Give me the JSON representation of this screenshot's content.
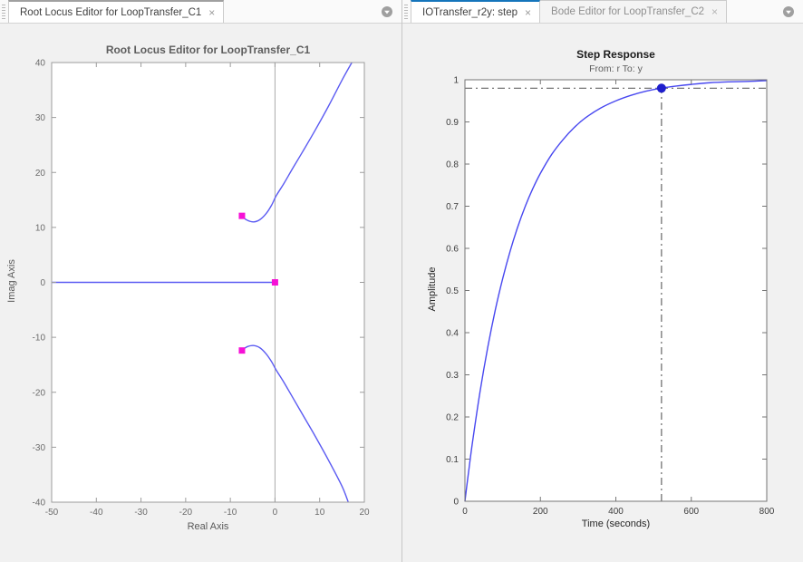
{
  "panels": [
    {
      "id": "root-locus-editor",
      "tabs": [
        {
          "label": "Root Locus Editor for LoopTransfer_C1",
          "close_icon": "×",
          "state": "selected-unfocused"
        }
      ],
      "overflow_icon": "circle-arrow-down"
    },
    {
      "id": "analysis-views",
      "tabs": [
        {
          "label": "IOTransfer_r2y: step",
          "close_icon": "×",
          "state": "selected-focused"
        },
        {
          "label": "Bode Editor for LoopTransfer_C2",
          "close_icon": "×",
          "state": "inactive"
        }
      ],
      "overflow_icon": "circle-arrow-down"
    }
  ],
  "colors": {
    "page_bg": "#f0f0f0",
    "tab_active_accent": "#1575bb",
    "tab_selected_accent": "#a0a0a0",
    "divider": "#c6c6c6",
    "root_locus_line": "#5b5bf2",
    "closed_loop_pole": "#f611d6",
    "step_line": "#4848f0",
    "settling_marker": "#1e1ecc",
    "reference_line": "#666666"
  },
  "chart_data": [
    {
      "type": "line",
      "title": "Root Locus Editor for LoopTransfer_C1",
      "xlabel": "Real Axis",
      "ylabel": "Imag Axis",
      "xlim": [
        -50,
        20
      ],
      "ylim": [
        -40,
        40
      ],
      "xticks": [
        -50,
        -40,
        -30,
        -20,
        -10,
        0,
        10,
        20
      ],
      "yticks": [
        -40,
        -30,
        -20,
        -10,
        0,
        10,
        20,
        30,
        40
      ],
      "grid": false,
      "axis_vline_x": 0,
      "line_color": "#5b5bf2",
      "border_color": "#9c9c9c",
      "vline_color": "#ababab",
      "tick_label_color": "#6b6b6b",
      "series": [
        {
          "name": "real-axis-locus",
          "points": [
            [
              -50,
              0
            ],
            [
              0,
              0
            ]
          ]
        },
        {
          "name": "upper-complex-branch",
          "points": [
            [
              -7.5,
              12
            ],
            [
              -6.2,
              11.3
            ],
            [
              -4.8,
              11
            ],
            [
              -3.4,
              11.4
            ],
            [
              -2,
              12.5
            ],
            [
              -0.8,
              14
            ],
            [
              0.3,
              15.8
            ],
            [
              2,
              18
            ],
            [
              4,
              20.8
            ],
            [
              6.5,
              24.2
            ],
            [
              9,
              27.7
            ],
            [
              12,
              32.1
            ],
            [
              15,
              36.8
            ],
            [
              17.2,
              40
            ]
          ]
        },
        {
          "name": "lower-complex-branch",
          "points": [
            [
              -7.5,
              -12.4
            ],
            [
              -6.2,
              -11.7
            ],
            [
              -4.8,
              -11.5
            ],
            [
              -3.4,
              -11.9
            ],
            [
              -2,
              -13
            ],
            [
              -0.8,
              -14.4
            ],
            [
              0.3,
              -16
            ],
            [
              2,
              -18.2
            ],
            [
              4,
              -21
            ],
            [
              6.5,
              -24.5
            ],
            [
              9,
              -28
            ],
            [
              12,
              -32.4
            ],
            [
              15,
              -37.1
            ],
            [
              16.4,
              -40
            ]
          ]
        }
      ],
      "markers": [
        {
          "shape": "square",
          "color": "#f611d6",
          "x": -7.4,
          "y": 12.1,
          "meaning": "closed-loop-pole"
        },
        {
          "shape": "square",
          "color": "#f611d6",
          "x": -7.4,
          "y": -12.4,
          "meaning": "closed-loop-pole"
        },
        {
          "shape": "square",
          "color": "#f611d6",
          "x": 0,
          "y": 0,
          "meaning": "closed-loop-pole"
        }
      ]
    },
    {
      "type": "line",
      "title": "Step Response",
      "subtitle": "From: r  To: y",
      "xlabel": "Time (seconds)",
      "ylabel": "Amplitude",
      "xlim": [
        0,
        800
      ],
      "ylim": [
        0,
        1
      ],
      "xticks": [
        0,
        200,
        400,
        600,
        800
      ],
      "yticks": [
        0,
        0.1,
        0.2,
        0.3,
        0.4,
        0.5,
        0.6,
        0.7,
        0.8,
        0.9,
        1
      ],
      "grid": false,
      "line_color": "#4848f0",
      "border_color": "#757575",
      "tick_label_color": "#3d3d3d",
      "series": [
        {
          "name": "step-response",
          "points": [
            [
              0,
              0
            ],
            [
              5,
              0.037
            ],
            [
              10,
              0.072
            ],
            [
              20,
              0.14
            ],
            [
              40,
              0.26
            ],
            [
              60,
              0.363
            ],
            [
              80,
              0.452
            ],
            [
              100,
              0.528
            ],
            [
              120,
              0.594
            ],
            [
              140,
              0.651
            ],
            [
              160,
              0.7
            ],
            [
              180,
              0.742
            ],
            [
              200,
              0.778
            ],
            [
              230,
              0.823
            ],
            [
              260,
              0.858
            ],
            [
              290,
              0.887
            ],
            [
              320,
              0.91
            ],
            [
              360,
              0.933
            ],
            [
              400,
              0.95
            ],
            [
              440,
              0.963
            ],
            [
              480,
              0.973
            ],
            [
              520,
              0.98
            ],
            [
              560,
              0.985
            ],
            [
              600,
              0.989
            ],
            [
              650,
              0.993
            ],
            [
              700,
              0.995
            ],
            [
              750,
              0.996
            ],
            [
              800,
              0.998
            ]
          ]
        }
      ],
      "reference_lines": [
        {
          "orient": "h",
          "value": 0.98,
          "style": "dash-dot",
          "color": "#666666"
        },
        {
          "orient": "v",
          "value": 521,
          "y_from": 0,
          "y_to": 0.98,
          "style": "dash-dot",
          "color": "#666666"
        }
      ],
      "markers": [
        {
          "shape": "circle",
          "color": "#1e1ecc",
          "x": 521,
          "y": 0.98,
          "meaning": "settling-point"
        }
      ]
    }
  ]
}
